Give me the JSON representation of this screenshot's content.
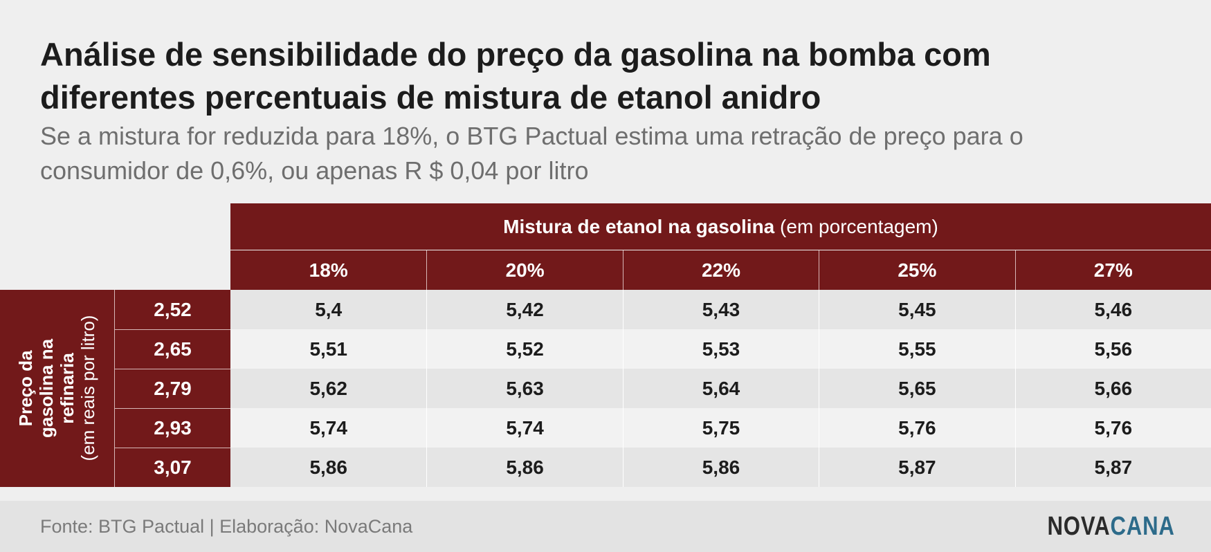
{
  "title": "Análise de sensibilidade do preço da gasolina na bomba com diferentes percentuais de mistura de etanol anidro",
  "subtitle": "Se a mistura for reduzida para 18%, o BTG Pactual estima uma retração de preço para o consumidor de 0,6%, ou apenas R $ 0,04 por litro",
  "table_header": {
    "bold": "Mistura de etanol na gasolina",
    "normal": " (em porcentagem)"
  },
  "row_label": {
    "bold": "Preço da gasolina na refinaria",
    "normal": "(em reais por litro)"
  },
  "colors": {
    "header": "#72191a",
    "row_odd": "#e5e5e5",
    "row_even": "#f2f2f2",
    "brand_blue": "#2d6b8a"
  },
  "chart_data": {
    "type": "table",
    "title": "Análise de sensibilidade do preço da gasolina na bomba com diferentes percentuais de mistura de etanol anidro",
    "columns": [
      "18%",
      "20%",
      "22%",
      "25%",
      "27%"
    ],
    "rows": [
      {
        "label": "2,52",
        "values": [
          "5,4",
          "5,42",
          "5,43",
          "5,45",
          "5,46"
        ]
      },
      {
        "label": "2,65",
        "values": [
          "5,51",
          "5,52",
          "5,53",
          "5,55",
          "5,56"
        ]
      },
      {
        "label": "2,79",
        "values": [
          "5,62",
          "5,63",
          "5,64",
          "5,65",
          "5,66"
        ]
      },
      {
        "label": "2,93",
        "values": [
          "5,74",
          "5,74",
          "5,75",
          "5,76",
          "5,76"
        ]
      },
      {
        "label": "3,07",
        "values": [
          "5,86",
          "5,86",
          "5,86",
          "5,87",
          "5,87"
        ]
      }
    ]
  },
  "footer": {
    "source": "Fonte: BTG Pactual | Elaboração: NovaCana",
    "logo_a": "NOVA",
    "logo_b": "CANA"
  }
}
